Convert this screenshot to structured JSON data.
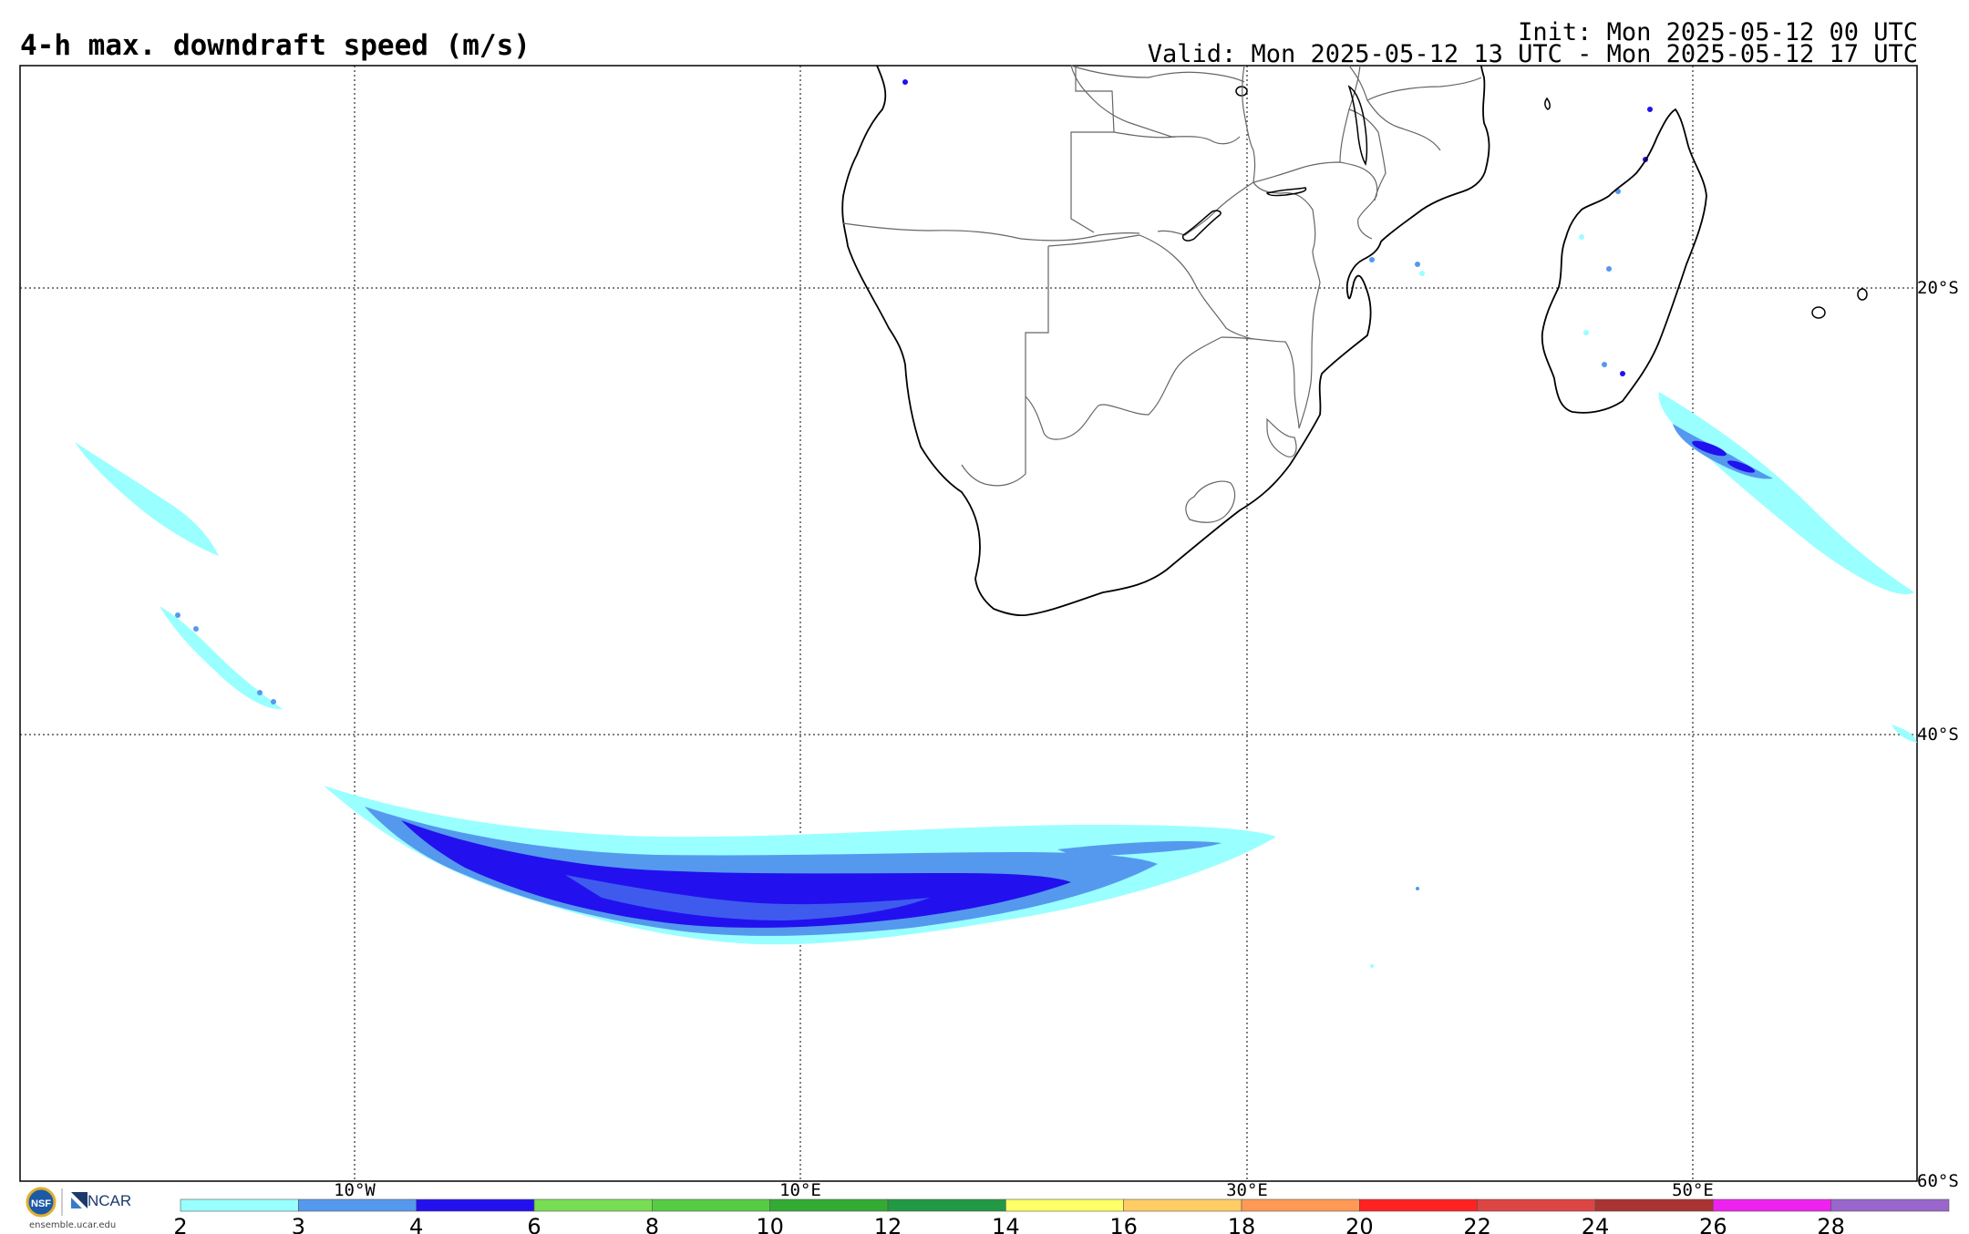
{
  "header": {
    "title": "4-h max. downdraft speed (m/s)",
    "init": "Init: Mon 2025-05-12 00 UTC",
    "valid": "Valid: Mon 2025-05-12 13 UTC - Mon 2025-05-12 17 UTC"
  },
  "map": {
    "lon_labels": [
      "10°W",
      "10°E",
      "30°E",
      "50°E"
    ],
    "lat_labels": [
      "20°S",
      "40°S",
      "60°S"
    ]
  },
  "legend": {
    "ticks": [
      "2",
      "3",
      "4",
      "6",
      "8",
      "10",
      "12",
      "14",
      "16",
      "18",
      "20",
      "22",
      "24",
      "26",
      "28"
    ],
    "colors": [
      "#99ffff",
      "#5599ee",
      "#2211ee",
      "#77dd55",
      "#55cc44",
      "#33aa33",
      "#229944",
      "#ffff66",
      "#ffcc66",
      "#ff9955",
      "#ff2222",
      "#dd4444",
      "#aa3333",
      "#ee22ee",
      "#9966cc"
    ]
  },
  "footer": {
    "org_text": "NCAR",
    "url": "ensemble.ucar.edu"
  }
}
